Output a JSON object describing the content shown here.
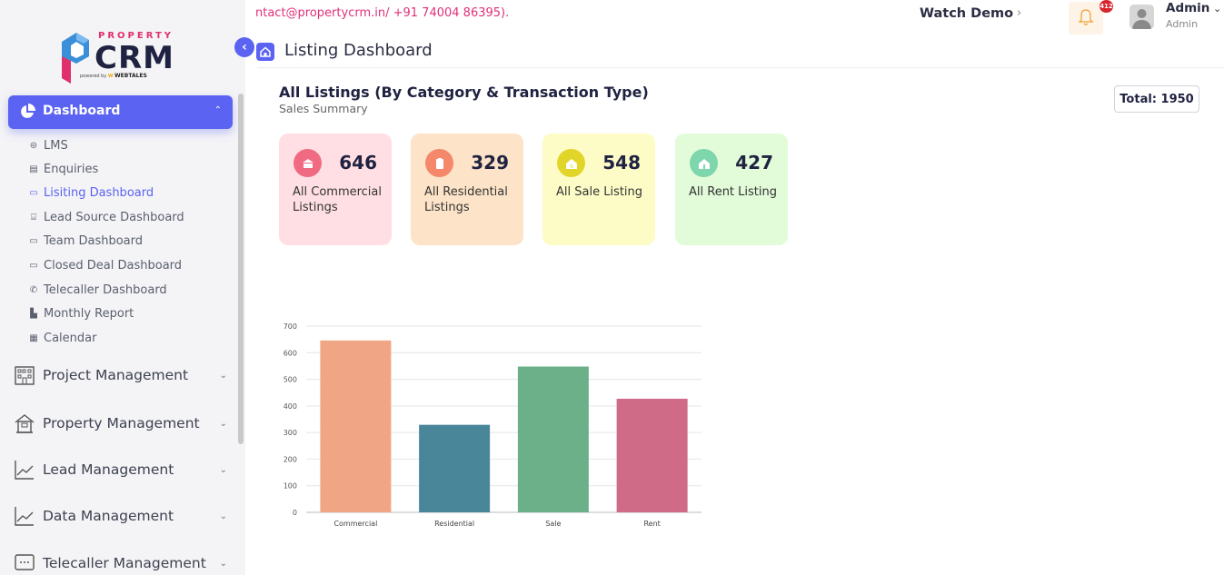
{
  "brand": {
    "top": "PROPERTY",
    "name": "CRM",
    "powered": "powered by",
    "partner": "WEBTALES"
  },
  "sidebar": {
    "dashboard_label": "Dashboard",
    "sub_items": [
      {
        "label": "LMS"
      },
      {
        "label": "Enquiries"
      },
      {
        "label": "Lisiting Dashboard"
      },
      {
        "label": "Lead Source Dashboard"
      },
      {
        "label": "Team Dashboard"
      },
      {
        "label": "Closed Deal Dashboard"
      },
      {
        "label": "Telecaller Dashboard"
      },
      {
        "label": "Monthly Report"
      },
      {
        "label": "Calendar"
      }
    ],
    "menus": [
      {
        "label": "Project Management"
      },
      {
        "label": "Property Management"
      },
      {
        "label": "Lead Management"
      },
      {
        "label": "Data Management"
      },
      {
        "label": "Telecaller Management"
      }
    ]
  },
  "topbar": {
    "marquee": "ntact@propertycrm.in/ +91 74004 86395).",
    "watch_demo": "Watch Demo",
    "notification_count": "412",
    "user_name": "Admin",
    "user_role": "Admin"
  },
  "page": {
    "title": "Listing Dashboard"
  },
  "summary": {
    "title": "All Listings (By Category & Transaction Type)",
    "subtitle": "Sales Summary",
    "total_label": "Total: 1950",
    "cards": [
      {
        "value": "646",
        "label": "All Commercial Listings",
        "bg": "#ffdfe3",
        "icon_bg": "#f06a82"
      },
      {
        "value": "329",
        "label": "All Residential Listings",
        "bg": "#fde3c7",
        "icon_bg": "#f5876a"
      },
      {
        "value": "548",
        "label": "All Sale Listing",
        "bg": "#fdfcc7",
        "icon_bg": "#e2d52a"
      },
      {
        "value": "427",
        "label": "All Rent Listing",
        "bg": "#e2fbd9",
        "icon_bg": "#7ed6ad"
      }
    ]
  },
  "chart_data": {
    "type": "bar",
    "categories": [
      "Commercial",
      "Residential",
      "Sale",
      "Rent"
    ],
    "values": [
      646,
      329,
      548,
      427
    ],
    "colors": [
      "#f0a684",
      "#4a8699",
      "#6bb088",
      "#cf6a87"
    ],
    "ylim": [
      0,
      700
    ],
    "yticks": [
      0,
      100,
      200,
      300,
      400,
      500,
      600,
      700
    ],
    "grid": true
  }
}
